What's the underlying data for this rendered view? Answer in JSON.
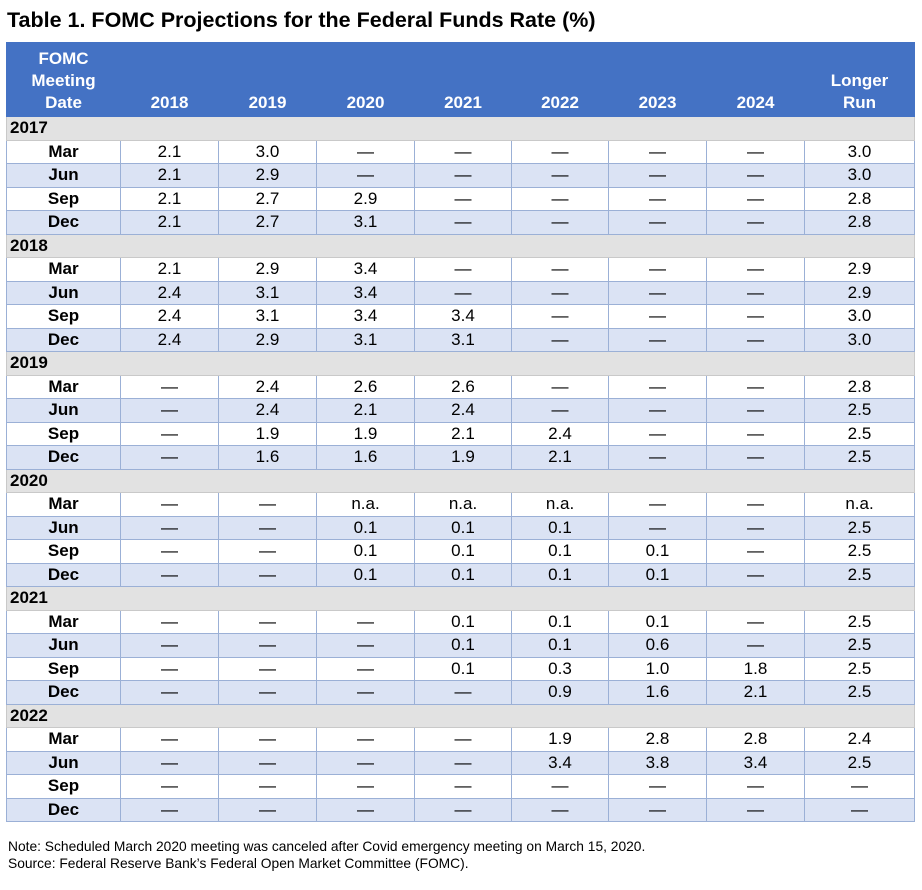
{
  "title": "Table 1. FOMC Projections for the Federal Funds Rate (%)",
  "headers": {
    "date": [
      "FOMC",
      "Meeting",
      "Date"
    ],
    "years": [
      "2018",
      "2019",
      "2020",
      "2021",
      "2022",
      "2023",
      "2024"
    ],
    "longer_run": [
      "Longer",
      "Run"
    ]
  },
  "groups": [
    {
      "year": "2017",
      "rows": [
        {
          "month": "Mar",
          "values": [
            "2.1",
            "3.0",
            "—",
            "—",
            "—",
            "—",
            "—",
            "3.0"
          ]
        },
        {
          "month": "Jun",
          "values": [
            "2.1",
            "2.9",
            "—",
            "—",
            "—",
            "—",
            "—",
            "3.0"
          ]
        },
        {
          "month": "Sep",
          "values": [
            "2.1",
            "2.7",
            "2.9",
            "—",
            "—",
            "—",
            "—",
            "2.8"
          ]
        },
        {
          "month": "Dec",
          "values": [
            "2.1",
            "2.7",
            "3.1",
            "—",
            "—",
            "—",
            "—",
            "2.8"
          ]
        }
      ]
    },
    {
      "year": "2018",
      "rows": [
        {
          "month": "Mar",
          "values": [
            "2.1",
            "2.9",
            "3.4",
            "—",
            "—",
            "—",
            "—",
            "2.9"
          ]
        },
        {
          "month": "Jun",
          "values": [
            "2.4",
            "3.1",
            "3.4",
            "—",
            "—",
            "—",
            "—",
            "2.9"
          ]
        },
        {
          "month": "Sep",
          "values": [
            "2.4",
            "3.1",
            "3.4",
            "3.4",
            "—",
            "—",
            "—",
            "3.0"
          ]
        },
        {
          "month": "Dec",
          "values": [
            "2.4",
            "2.9",
            "3.1",
            "3.1",
            "—",
            "—",
            "—",
            "3.0"
          ]
        }
      ]
    },
    {
      "year": "2019",
      "rows": [
        {
          "month": "Mar",
          "values": [
            "—",
            "2.4",
            "2.6",
            "2.6",
            "—",
            "—",
            "—",
            "2.8"
          ]
        },
        {
          "month": "Jun",
          "values": [
            "—",
            "2.4",
            "2.1",
            "2.4",
            "—",
            "—",
            "—",
            "2.5"
          ]
        },
        {
          "month": "Sep",
          "values": [
            "—",
            "1.9",
            "1.9",
            "2.1",
            "2.4",
            "—",
            "—",
            "2.5"
          ]
        },
        {
          "month": "Dec",
          "values": [
            "—",
            "1.6",
            "1.6",
            "1.9",
            "2.1",
            "—",
            "—",
            "2.5"
          ]
        }
      ]
    },
    {
      "year": "2020",
      "rows": [
        {
          "month": "Mar",
          "values": [
            "—",
            "—",
            "n.a.",
            "n.a.",
            "n.a.",
            "—",
            "—",
            "n.a."
          ]
        },
        {
          "month": "Jun",
          "values": [
            "—",
            "—",
            "0.1",
            "0.1",
            "0.1",
            "—",
            "—",
            "2.5"
          ]
        },
        {
          "month": "Sep",
          "values": [
            "—",
            "—",
            "0.1",
            "0.1",
            "0.1",
            "0.1",
            "—",
            "2.5"
          ]
        },
        {
          "month": "Dec",
          "values": [
            "—",
            "—",
            "0.1",
            "0.1",
            "0.1",
            "0.1",
            "—",
            "2.5"
          ]
        }
      ]
    },
    {
      "year": "2021",
      "rows": [
        {
          "month": "Mar",
          "values": [
            "—",
            "—",
            "—",
            "0.1",
            "0.1",
            "0.1",
            "—",
            "2.5"
          ]
        },
        {
          "month": "Jun",
          "values": [
            "—",
            "—",
            "—",
            "0.1",
            "0.1",
            "0.6",
            "—",
            "2.5"
          ]
        },
        {
          "month": "Sep",
          "values": [
            "—",
            "—",
            "—",
            "0.1",
            "0.3",
            "1.0",
            "1.8",
            "2.5"
          ]
        },
        {
          "month": "Dec",
          "values": [
            "—",
            "—",
            "—",
            "—",
            "0.9",
            "1.6",
            "2.1",
            "2.5"
          ]
        }
      ]
    },
    {
      "year": "2022",
      "rows": [
        {
          "month": "Mar",
          "values": [
            "—",
            "—",
            "—",
            "—",
            "1.9",
            "2.8",
            "2.8",
            "2.4"
          ]
        },
        {
          "month": "Jun",
          "values": [
            "—",
            "—",
            "—",
            "—",
            "3.4",
            "3.8",
            "3.4",
            "2.5"
          ]
        },
        {
          "month": "Sep",
          "values": [
            "—",
            "—",
            "—",
            "—",
            "—",
            "—",
            "—",
            "—"
          ]
        },
        {
          "month": "Dec",
          "values": [
            "—",
            "—",
            "—",
            "—",
            "—",
            "—",
            "—",
            "—"
          ]
        }
      ]
    }
  ],
  "notes": [
    "Note: Scheduled March 2020 meeting was canceled after Covid emergency meeting on March 15, 2020.",
    "Source: Federal Reserve Bank’s Federal Open Market Committee (FOMC)."
  ]
}
